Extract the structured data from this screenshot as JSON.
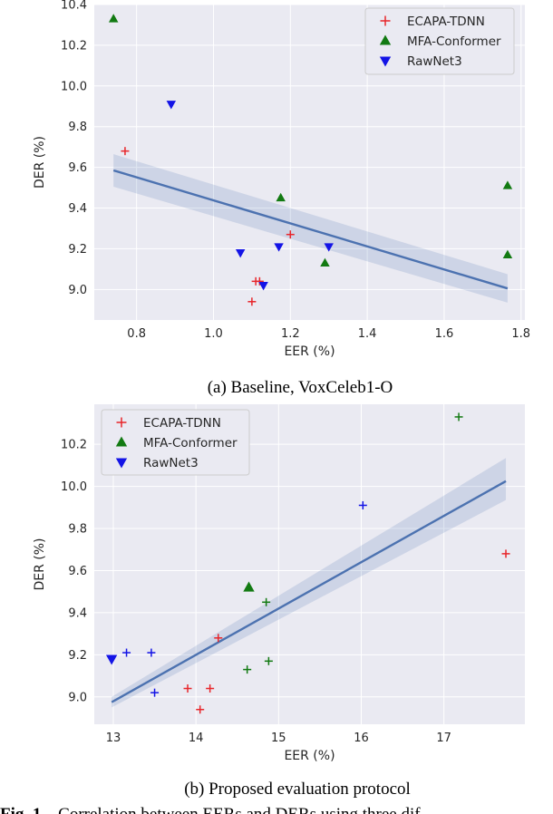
{
  "colors": {
    "panel_bg": "#eaeaf2",
    "grid": "#ffffff",
    "ecapa": "#e8262b",
    "mfa": "#127a12",
    "rawnet": "#1414e6",
    "fit_line": "#4c72b0",
    "ci_band": "#4c72b0"
  },
  "figure_caption": {
    "label": "Fig. 1",
    "text": "Correlation between EERs and DERs using three dif"
  },
  "chart_data": [
    {
      "type": "scatter",
      "caption": "(a) Baseline, VoxCeleb1-O",
      "xlabel": "EER (%)",
      "ylabel": "DER (%)",
      "xlim": [
        0.69,
        1.81
      ],
      "ylim": [
        8.85,
        10.4
      ],
      "xticks": [
        "0.8",
        "1.0",
        "1.2",
        "1.4",
        "1.6",
        "1.8"
      ],
      "xtick_values": [
        0.8,
        1.0,
        1.2,
        1.4,
        1.6,
        1.8
      ],
      "yticks": [
        "9.0",
        "9.2",
        "9.4",
        "9.6",
        "9.8",
        "10.0",
        "10.2",
        "10.4"
      ],
      "ytick_values": [
        9.0,
        9.2,
        9.4,
        9.6,
        9.8,
        10.0,
        10.2,
        10.4
      ],
      "grid": true,
      "legend_position": "top-right",
      "series": [
        {
          "name": "ECAPA-TDNN",
          "marker": "plus",
          "color": "#e8262b",
          "x": [
            0.77,
            1.1,
            1.11,
            1.12,
            1.2
          ],
          "y": [
            9.68,
            8.94,
            9.04,
            9.04,
            9.27
          ]
        },
        {
          "name": "MFA-Conformer",
          "marker": "triangle-up",
          "color": "#127a12",
          "x": [
            0.74,
            1.175,
            1.29,
            1.765,
            1.765
          ],
          "y": [
            10.33,
            9.45,
            9.13,
            9.51,
            9.17
          ]
        },
        {
          "name": "RawNet3",
          "marker": "triangle-down",
          "color": "#1414e6",
          "x": [
            0.89,
            1.07,
            1.13,
            1.17,
            1.3
          ],
          "y": [
            9.91,
            9.18,
            9.02,
            9.21,
            9.21
          ]
        }
      ],
      "fit": {
        "x": [
          0.74,
          1.765
        ],
        "y": [
          9.585,
          9.005
        ],
        "ci_lower": [
          9.505,
          8.935
        ],
        "ci_upper": [
          9.665,
          9.075
        ]
      }
    },
    {
      "type": "scatter",
      "caption": "(b) Proposed evaluation protocol",
      "xlabel": "EER (%)",
      "ylabel": "DER (%)",
      "xlim": [
        12.77,
        17.98
      ],
      "ylim": [
        8.87,
        10.39
      ],
      "xticks": [
        "13",
        "14",
        "15",
        "16",
        "17"
      ],
      "xtick_values": [
        13,
        14,
        15,
        16,
        17
      ],
      "yticks": [
        "9.0",
        "9.2",
        "9.4",
        "9.6",
        "9.8",
        "10.0",
        "10.2"
      ],
      "ytick_values": [
        9.0,
        9.2,
        9.4,
        9.6,
        9.8,
        10.0,
        10.2
      ],
      "grid": true,
      "legend_position": "top-left",
      "series": [
        {
          "name": "ECAPA-TDNN",
          "marker": "plus",
          "color": "#e8262b",
          "x": [
            13.9,
            14.05,
            14.17,
            14.27,
            17.75
          ],
          "y": [
            9.04,
            8.94,
            9.04,
            9.28,
            9.68
          ]
        },
        {
          "name": "MFA-Conformer",
          "marker": "triangle-up",
          "color": "#127a12",
          "x": [
            14.64
          ],
          "y": [
            9.52
          ]
        },
        {
          "name": "RawNet3",
          "marker": "triangle-down",
          "color": "#1414e6",
          "x": [
            12.98
          ],
          "y": [
            9.18
          ]
        }
      ],
      "extra_points": [
        {
          "x": 13.16,
          "y": 9.21,
          "marker": "plus",
          "color": "#1414e6"
        },
        {
          "x": 13.46,
          "y": 9.21,
          "marker": "plus",
          "color": "#1414e6"
        },
        {
          "x": 13.5,
          "y": 9.02,
          "marker": "plus",
          "color": "#1414e6"
        },
        {
          "x": 16.02,
          "y": 9.91,
          "marker": "plus",
          "color": "#1414e6"
        },
        {
          "x": 14.62,
          "y": 9.13,
          "marker": "plus",
          "color": "#127a12"
        },
        {
          "x": 14.85,
          "y": 9.45,
          "marker": "plus",
          "color": "#127a12"
        },
        {
          "x": 14.88,
          "y": 9.17,
          "marker": "plus",
          "color": "#127a12"
        },
        {
          "x": 17.18,
          "y": 10.33,
          "marker": "plus",
          "color": "#127a12"
        }
      ],
      "fit": {
        "x": [
          12.98,
          17.75
        ],
        "y": [
          8.975,
          10.025
        ],
        "ci_lower": [
          8.95,
          9.935
        ],
        "ci_upper": [
          9.0,
          10.135
        ]
      }
    }
  ]
}
